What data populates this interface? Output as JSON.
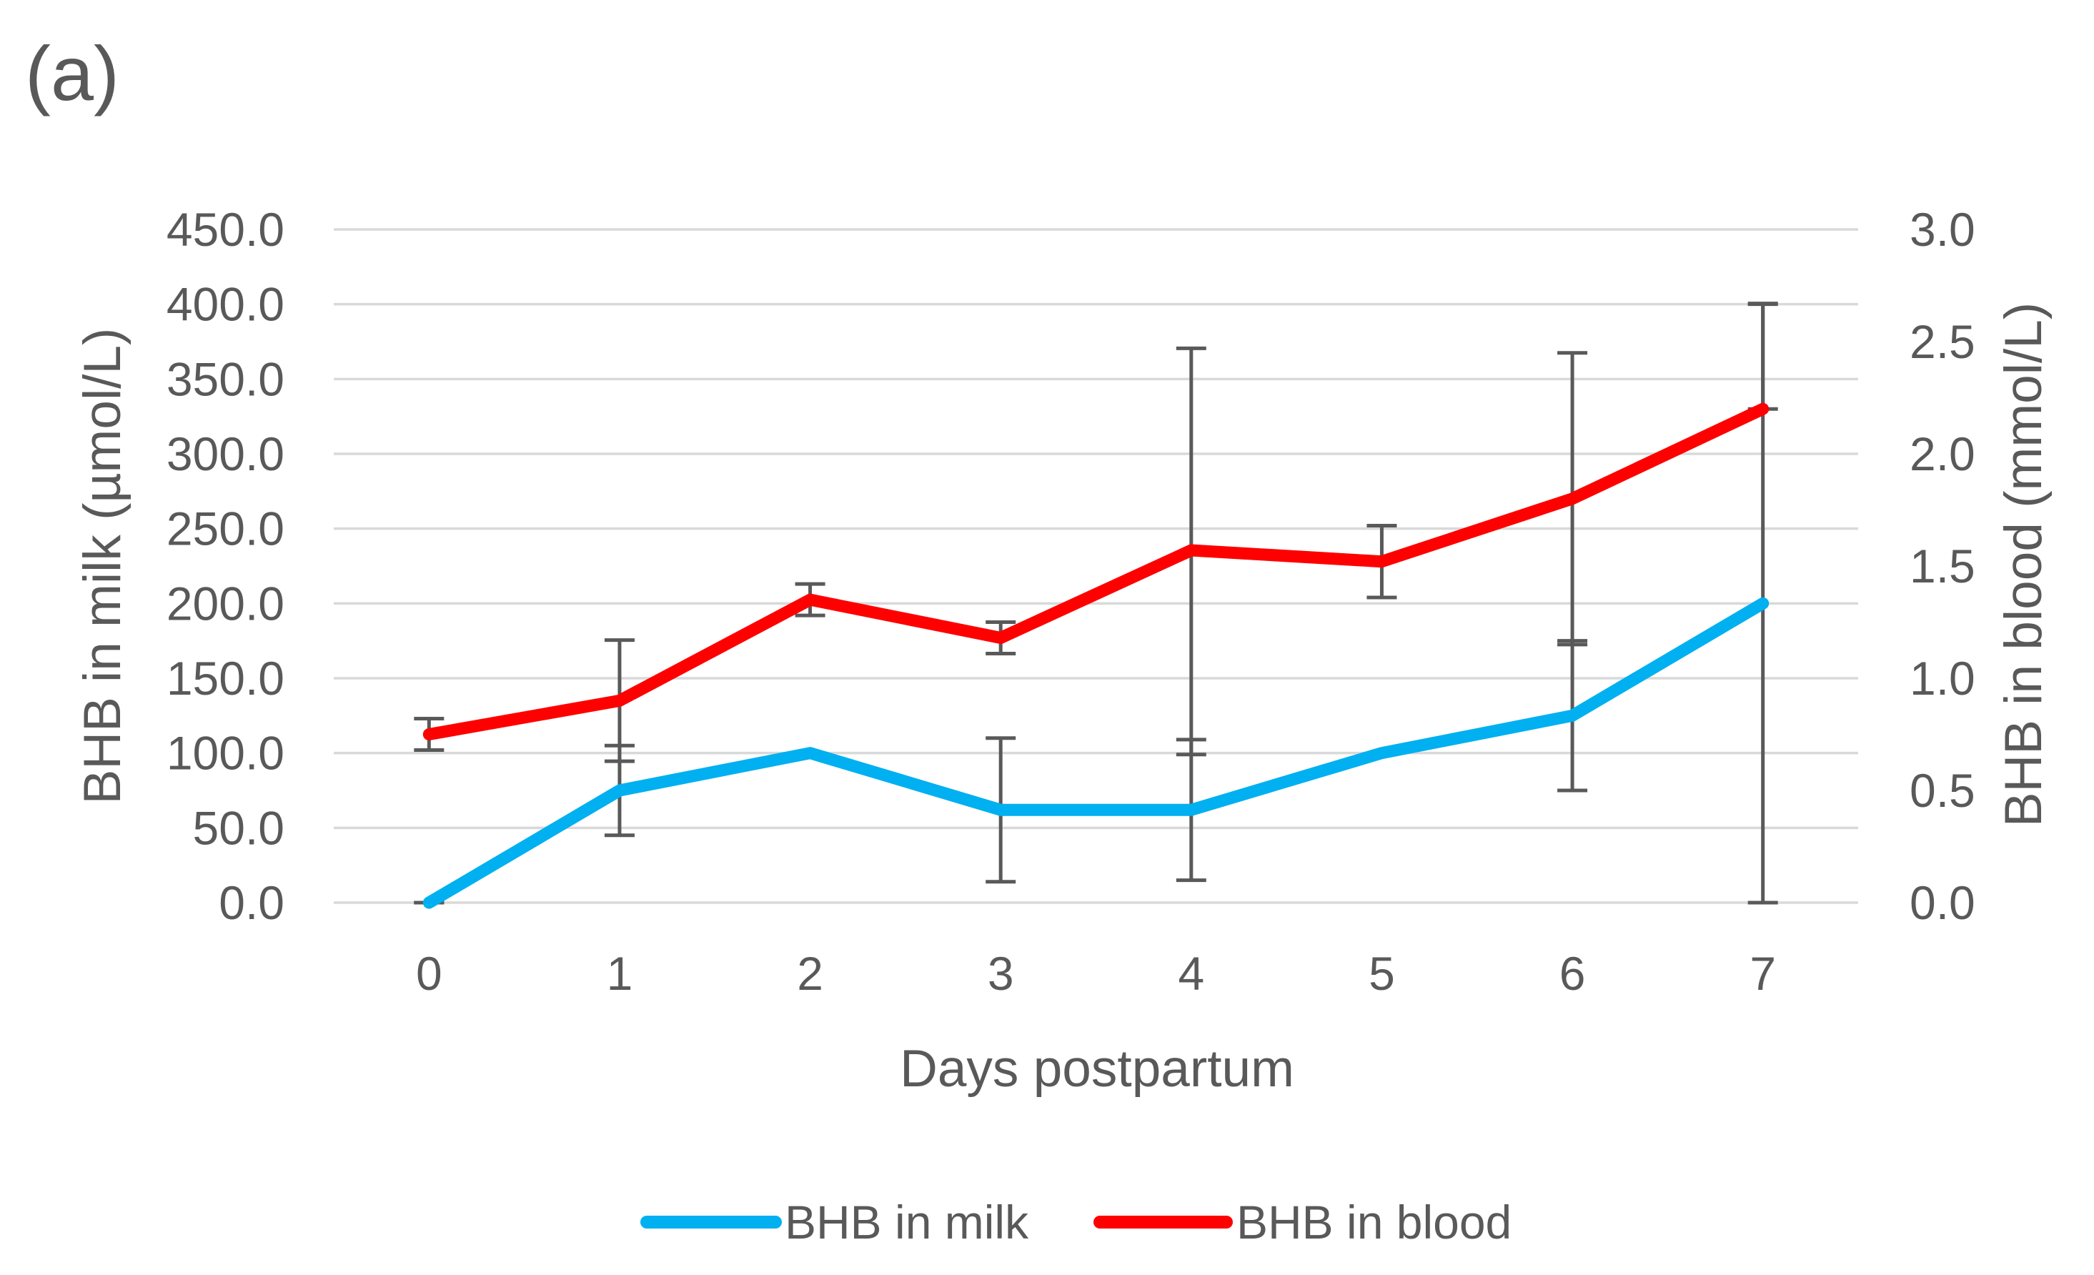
{
  "figure_label": "(a)",
  "chart_data": {
    "type": "line",
    "title": "",
    "categories": [
      "0",
      "1",
      "2",
      "3",
      "4",
      "5",
      "6",
      "7"
    ],
    "x_axis": {
      "label": "Days postpartum"
    },
    "y_axis_left": {
      "label": "BHB in milk (µmol/L)",
      "min": 0,
      "max": 450,
      "step": 50,
      "ticks": [
        "0.0",
        "50.0",
        "100.0",
        "150.0",
        "200.0",
        "250.0",
        "300.0",
        "350.0",
        "400.0",
        "450.0"
      ]
    },
    "y_axis_right": {
      "label": "BHB in blood (mmol/L)",
      "min": 0,
      "max": 3.0,
      "step": 0.5,
      "ticks": [
        "0.0",
        "0.5",
        "1.0",
        "1.5",
        "2.0",
        "2.5",
        "3.0"
      ]
    },
    "series": [
      {
        "name": "BHB in milk",
        "axis": "left",
        "color": "#00B0F0",
        "values": [
          0,
          75,
          100,
          62,
          62,
          100,
          125,
          200
        ],
        "error_bars": [
          {
            "lo": 0,
            "hi": 0
          },
          {
            "lo": 45,
            "hi": 105
          },
          null,
          {
            "lo": 14,
            "hi": 110
          },
          {
            "lo": 15,
            "hi": 109
          },
          null,
          {
            "lo": 75,
            "hi": 175
          },
          {
            "lo": 0,
            "hi": 400
          }
        ]
      },
      {
        "name": "BHB in blood",
        "axis": "right",
        "color": "#FF0000",
        "values": [
          0.75,
          0.9,
          1.35,
          1.18,
          1.57,
          1.52,
          1.8,
          2.2
        ],
        "error_bars": [
          {
            "lo": 0.68,
            "hi": 0.82
          },
          {
            "lo": 0.63,
            "hi": 1.17
          },
          {
            "lo": 1.28,
            "hi": 1.42
          },
          {
            "lo": 1.11,
            "hi": 1.25
          },
          {
            "lo": 0.66,
            "hi": 2.47
          },
          {
            "lo": 1.36,
            "hi": 1.68
          },
          {
            "lo": 1.15,
            "hi": 2.45
          },
          {
            "lo": 2.2,
            "hi": 2.67
          }
        ]
      }
    ],
    "legend": {
      "position": "bottom",
      "entries": [
        "BHB in milk",
        "BHB in blood"
      ]
    },
    "grid": true,
    "colors": {
      "gridline": "#D9D9D9",
      "text": "#595959",
      "error_bar": "#595959",
      "background": "#FFFFFF"
    }
  }
}
